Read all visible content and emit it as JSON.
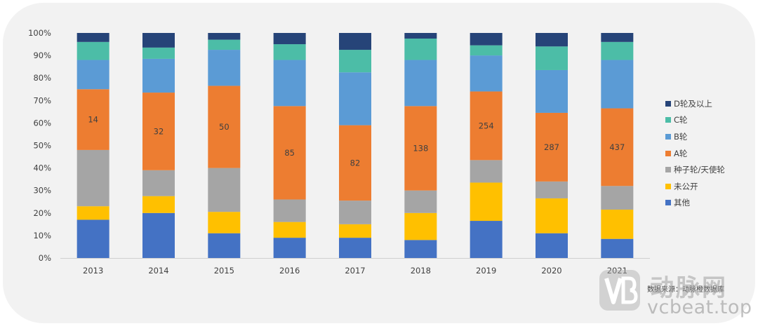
{
  "chart_data": {
    "type": "bar",
    "stacked": true,
    "percent": true,
    "categories": [
      "2013",
      "2014",
      "2015",
      "2016",
      "2017",
      "2018",
      "2019",
      "2020",
      "2021"
    ],
    "yticks": [
      "0%",
      "10%",
      "20%",
      "30%",
      "40%",
      "50%",
      "60%",
      "70%",
      "80%",
      "90%",
      "100%"
    ],
    "ylim": [
      0,
      100
    ],
    "grid": false,
    "legend_position": "right",
    "series": [
      {
        "name": "其他",
        "color": "#4472c4",
        "values": [
          17,
          20,
          11,
          9,
          9,
          8,
          16.5,
          11,
          8.5
        ]
      },
      {
        "name": "未公开",
        "color": "#ffc000",
        "values": [
          6,
          7.5,
          9.5,
          7,
          6,
          12,
          17,
          15.5,
          13
        ]
      },
      {
        "name": "种子轮/天使轮",
        "color": "#a5a5a5",
        "values": [
          25,
          11.5,
          19.5,
          10,
          10.5,
          10,
          10,
          7.5,
          10.5
        ]
      },
      {
        "name": "A轮",
        "color": "#ed7d31",
        "values": [
          27,
          34.5,
          36.5,
          41.5,
          33.5,
          37.5,
          30.5,
          30.5,
          34.5
        ]
      },
      {
        "name": "B轮",
        "color": "#5b9bd5",
        "values": [
          13,
          15,
          16,
          20.5,
          23.5,
          20.5,
          16,
          19,
          21.5
        ]
      },
      {
        "name": "C轮",
        "color": "#4cbda7",
        "values": [
          8,
          5,
          4.5,
          7,
          10,
          9.5,
          4.5,
          10.5,
          8
        ]
      },
      {
        "name": "D轮及以上",
        "color": "#264478",
        "values": [
          4,
          6.5,
          3,
          5,
          7.5,
          2.5,
          5.5,
          6,
          4
        ]
      }
    ],
    "data_labels": {
      "series": "A轮",
      "values": [
        "14",
        "32",
        "50",
        "85",
        "82",
        "138",
        "254",
        "287",
        "437"
      ]
    }
  },
  "legend_order": [
    "D轮及以上",
    "C轮",
    "B轮",
    "A轮",
    "种子轮/天使轮",
    "未公开",
    "其他"
  ],
  "source_text": "数据来源：动脉橙数据库",
  "watermark": {
    "cn": "动脉网",
    "en": "vcbeat.top"
  }
}
